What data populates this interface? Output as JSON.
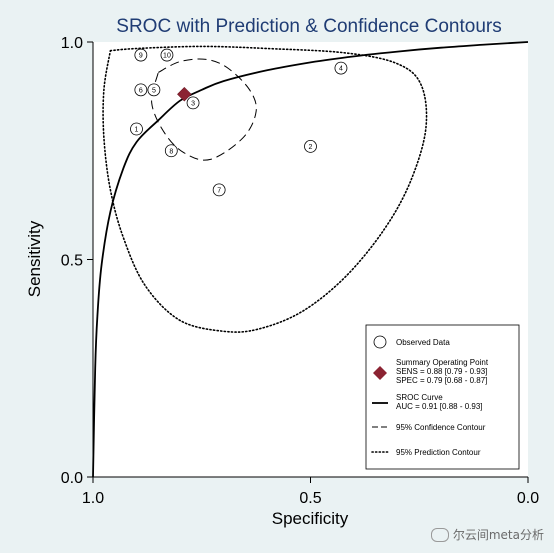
{
  "chart_data": {
    "type": "scatter",
    "title": "SROC with Prediction & Confidence Contours",
    "xlabel": "Specificity",
    "ylabel": "Sensitivity",
    "xlim": [
      1.0,
      0.0
    ],
    "ylim": [
      0.0,
      1.0
    ],
    "x_ticks": [
      "1.0",
      "0.5",
      "0.0"
    ],
    "y_ticks": [
      "0.0",
      "0.5",
      "1.0"
    ],
    "grid": false,
    "legend_position": "bottom-right",
    "studies": [
      {
        "label": "1",
        "specificity": 0.9,
        "sensitivity": 0.8
      },
      {
        "label": "2",
        "specificity": 0.5,
        "sensitivity": 0.76
      },
      {
        "label": "3",
        "specificity": 0.77,
        "sensitivity": 0.86
      },
      {
        "label": "4",
        "specificity": 0.43,
        "sensitivity": 0.94
      },
      {
        "label": "5",
        "specificity": 0.86,
        "sensitivity": 0.89
      },
      {
        "label": "6",
        "specificity": 0.89,
        "sensitivity": 0.89
      },
      {
        "label": "7",
        "specificity": 0.71,
        "sensitivity": 0.66
      },
      {
        "label": "8",
        "specificity": 0.82,
        "sensitivity": 0.75
      },
      {
        "label": "9",
        "specificity": 0.89,
        "sensitivity": 0.97
      },
      {
        "label": "10",
        "specificity": 0.83,
        "sensitivity": 0.97
      }
    ],
    "summary_point": {
      "specificity": 0.79,
      "sensitivity": 0.88
    },
    "sroc_curve": [
      [
        1.0,
        0.0
      ],
      [
        0.995,
        0.25
      ],
      [
        0.99,
        0.37
      ],
      [
        0.98,
        0.49
      ],
      [
        0.96,
        0.61
      ],
      [
        0.93,
        0.71
      ],
      [
        0.9,
        0.77
      ],
      [
        0.85,
        0.82
      ],
      [
        0.8,
        0.865
      ],
      [
        0.75,
        0.89
      ],
      [
        0.7,
        0.91
      ],
      [
        0.6,
        0.935
      ],
      [
        0.5,
        0.953
      ],
      [
        0.4,
        0.967
      ],
      [
        0.3,
        0.978
      ],
      [
        0.2,
        0.987
      ],
      [
        0.1,
        0.994
      ],
      [
        0.0,
        1.0
      ]
    ],
    "confidence_contour": [
      [
        0.85,
        0.93
      ],
      [
        0.8,
        0.955
      ],
      [
        0.74,
        0.96
      ],
      [
        0.69,
        0.94
      ],
      [
        0.64,
        0.89
      ],
      [
        0.625,
        0.84
      ],
      [
        0.655,
        0.78
      ],
      [
        0.73,
        0.73
      ],
      [
        0.79,
        0.745
      ],
      [
        0.835,
        0.79
      ],
      [
        0.865,
        0.86
      ],
      [
        0.85,
        0.93
      ]
    ],
    "prediction_contour": [
      [
        0.96,
        0.98
      ],
      [
        0.9,
        0.985
      ],
      [
        0.75,
        0.99
      ],
      [
        0.6,
        0.985
      ],
      [
        0.42,
        0.975
      ],
      [
        0.3,
        0.95
      ],
      [
        0.245,
        0.9
      ],
      [
        0.235,
        0.8
      ],
      [
        0.27,
        0.68
      ],
      [
        0.33,
        0.57
      ],
      [
        0.42,
        0.46
      ],
      [
        0.52,
        0.38
      ],
      [
        0.62,
        0.34
      ],
      [
        0.7,
        0.335
      ],
      [
        0.8,
        0.36
      ],
      [
        0.88,
        0.44
      ],
      [
        0.93,
        0.55
      ],
      [
        0.96,
        0.66
      ],
      [
        0.975,
        0.78
      ],
      [
        0.975,
        0.89
      ],
      [
        0.96,
        0.98
      ]
    ],
    "legend": [
      {
        "kind": "observed",
        "lines": [
          "Observed Data"
        ]
      },
      {
        "kind": "summary",
        "lines": [
          "Summary Operating Point",
          "SENS = 0.88 [0.79 - 0.93]",
          "SPEC = 0.79 [0.68 - 0.87]"
        ]
      },
      {
        "kind": "sroc",
        "lines": [
          "SROC Curve",
          "AUC = 0.91 [0.88 - 0.93]"
        ]
      },
      {
        "kind": "confidence",
        "lines": [
          "95% Confidence Contour"
        ]
      },
      {
        "kind": "prediction",
        "lines": [
          "95% Prediction Contour"
        ]
      }
    ],
    "colors": {
      "background": "#eaf2f3",
      "plot_background": "#ffffff",
      "title": "#1f3c74",
      "summary_point": "#8b2332",
      "lines": "#000000"
    }
  },
  "watermark": {
    "text": "尔云间meta分析",
    "icon": "wechat-icon"
  }
}
